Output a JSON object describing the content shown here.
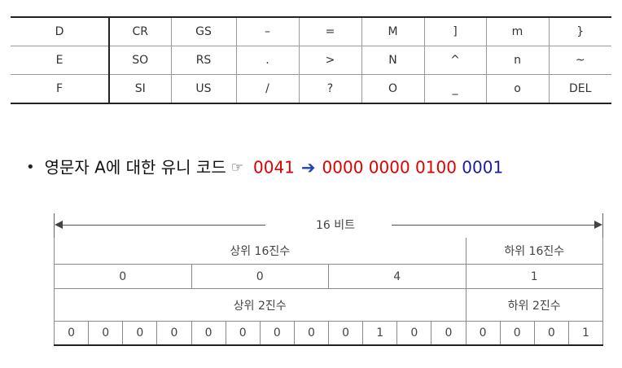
{
  "ascii_table": {
    "rows": [
      [
        "D",
        "CR",
        "GS",
        "–",
        "=",
        "M",
        "]",
        "m",
        "}"
      ],
      [
        "E",
        "SO",
        "RS",
        ".",
        ">",
        "N",
        "^",
        "n",
        "~"
      ],
      [
        "F",
        "SI",
        "US",
        "/",
        "?",
        "O",
        "_",
        "o",
        "DEL"
      ]
    ]
  },
  "unicode_line": {
    "bullet": "•",
    "label": "영문자 A에 대한 유니 코드",
    "pointer_icon": "☞",
    "hex_code": "0041",
    "arrow_icon": "➔",
    "binary_red": "0000 0000 0100",
    "binary_blue": "0001"
  },
  "bit_diagram": {
    "span_label": "16 비트",
    "upper_hex_label": "상위 16진수",
    "lower_hex_label": "하위 16진수",
    "hex_digits": [
      "0",
      "0",
      "4",
      "1"
    ],
    "upper_bin_label": "상위 2진수",
    "lower_bin_label": "하위 2진수",
    "bits": [
      "0",
      "0",
      "0",
      "0",
      "0",
      "0",
      "0",
      "0",
      "0",
      "1",
      "0",
      "0",
      "0",
      "0",
      "0",
      "1"
    ]
  }
}
